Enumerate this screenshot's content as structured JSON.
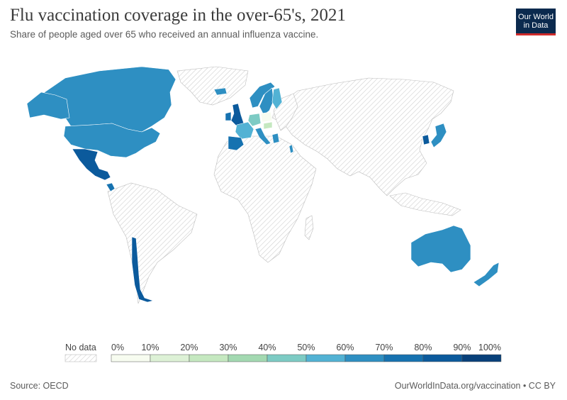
{
  "header": {
    "title": "Flu vaccination coverage in the over-65's, 2021",
    "subtitle": "Share of people aged over 65 who received an annual influenza vaccine."
  },
  "logo": {
    "line1": "Our World",
    "line2": "in Data"
  },
  "legend": {
    "no_data_label": "No data",
    "ticks": [
      "0%",
      "10%",
      "20%",
      "30%",
      "40%",
      "50%",
      "60%",
      "70%",
      "80%",
      "90%",
      "100%"
    ],
    "colors": [
      "#f7fcf0",
      "#ddf1d6",
      "#c5e8c0",
      "#a3d9b1",
      "#7dcbc4",
      "#52b2d4",
      "#2e8fc2",
      "#1672b0",
      "#0b5a9c",
      "#08407a"
    ]
  },
  "footer": {
    "source": "Source: OECD",
    "credit": "OurWorldInData.org/vaccination • CC BY"
  },
  "chart_data": {
    "type": "choropleth",
    "title": "Flu vaccination coverage in the over-65's, 2021",
    "scale": {
      "min": 0,
      "max": 100,
      "unit": "%",
      "bins": [
        0,
        10,
        20,
        30,
        40,
        50,
        60,
        70,
        80,
        90,
        100
      ]
    },
    "regions": [
      {
        "name": "Canada",
        "value": 60
      },
      {
        "name": "United States",
        "value": 67
      },
      {
        "name": "Mexico",
        "value": 82
      },
      {
        "name": "Costa Rica",
        "value": 72
      },
      {
        "name": "Chile",
        "value": 83
      },
      {
        "name": "Greenland",
        "value": null
      },
      {
        "name": "Iceland",
        "value": 62
      },
      {
        "name": "Norway",
        "value": 60
      },
      {
        "name": "Sweden",
        "value": 65
      },
      {
        "name": "Finland",
        "value": 57
      },
      {
        "name": "United Kingdom",
        "value": 82
      },
      {
        "name": "Ireland",
        "value": 76
      },
      {
        "name": "France",
        "value": 56
      },
      {
        "name": "Spain",
        "value": 70
      },
      {
        "name": "Portugal",
        "value": 70
      },
      {
        "name": "Italy",
        "value": 65
      },
      {
        "name": "Germany",
        "value": 45
      },
      {
        "name": "Poland",
        "value": 8
      },
      {
        "name": "Hungary",
        "value": 20
      },
      {
        "name": "Greece",
        "value": 60
      },
      {
        "name": "Israel",
        "value": 63
      },
      {
        "name": "Japan",
        "value": 65
      },
      {
        "name": "South Korea",
        "value": 85
      },
      {
        "name": "Australia",
        "value": 62
      },
      {
        "name": "New Zealand",
        "value": 67
      }
    ]
  }
}
